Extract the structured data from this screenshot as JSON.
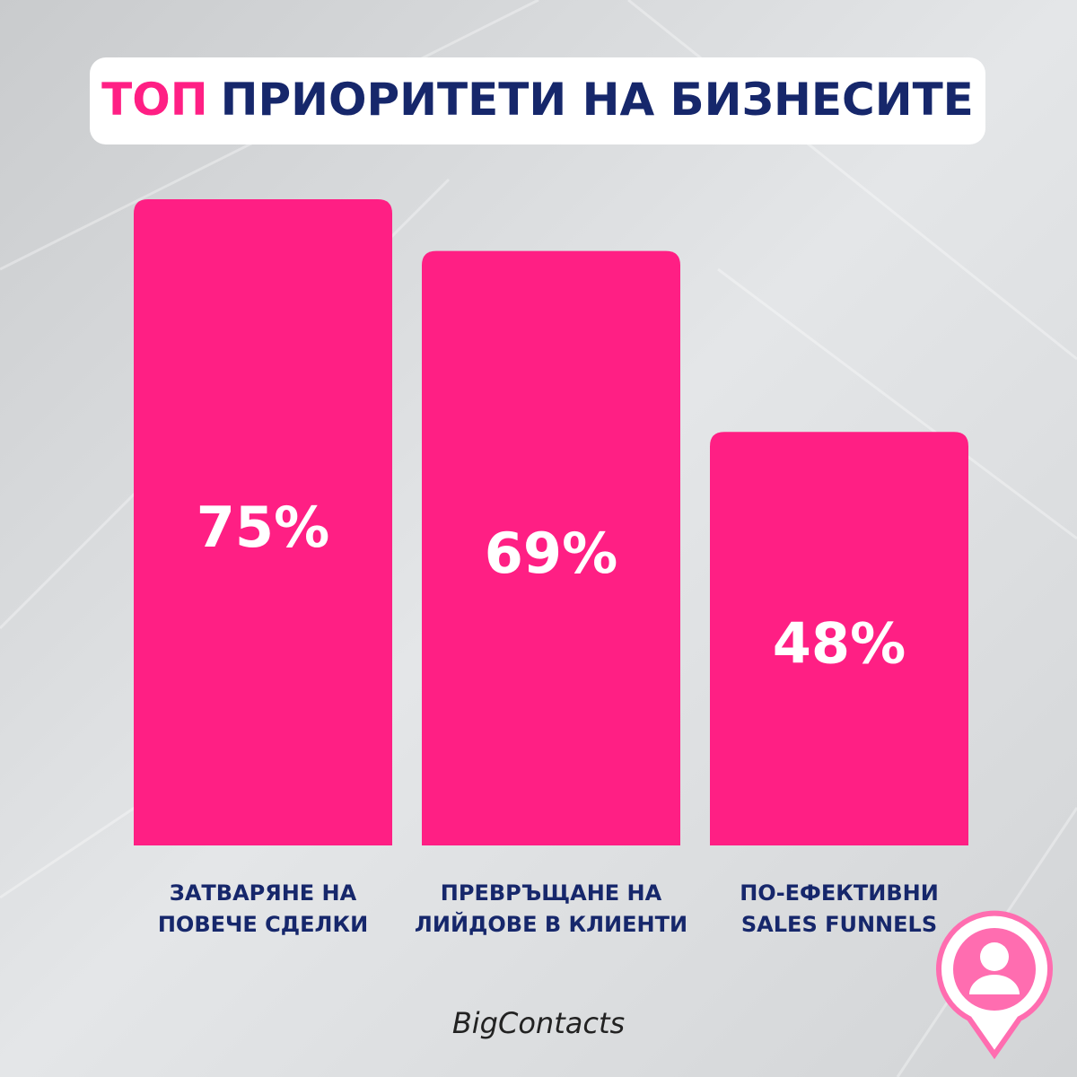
{
  "chart_data": {
    "type": "bar",
    "title": [
      "ТОП",
      "ПРИОРИТЕТИ НА БИЗНЕСИТЕ"
    ],
    "categories": [
      [
        "ЗАТВАРЯНЕ НА",
        "ПОВЕЧЕ СДЕЛКИ"
      ],
      [
        "ПРЕВРЪЩАНЕ НА",
        "ЛИЙДОВЕ В КЛИЕНТИ"
      ],
      [
        "ПО-ЕФЕКТИВНИ",
        "SALES FUNNELS"
      ]
    ],
    "values": [
      75,
      69,
      48
    ],
    "value_labels": [
      "75%",
      "69%",
      "48%"
    ],
    "color": "#ff1f84",
    "footer": "BigContacts"
  }
}
